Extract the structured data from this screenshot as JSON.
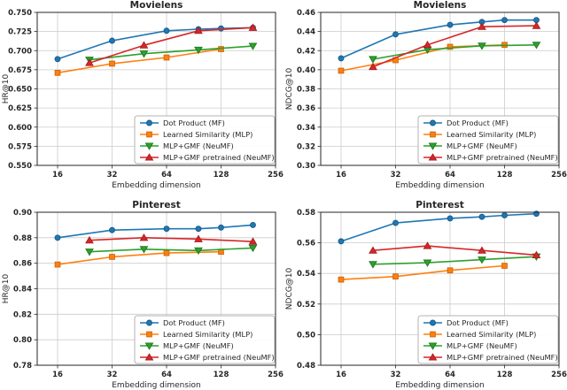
{
  "figure": {
    "background": "#ffffff",
    "grid_color": "#cccccc",
    "spine_color": "#262626",
    "legend_border_color": "#b3b3b3",
    "legend_position": "lower right"
  },
  "chart_data": [
    {
      "type": "line",
      "title": "Movielens",
      "xlabel": "Embedding dimension",
      "ylabel": "HR@10",
      "xscale": "log2",
      "xticks": [
        16,
        32,
        64,
        128,
        256
      ],
      "xtick_labels": [
        "16",
        "32",
        "64",
        "128",
        "256"
      ],
      "ylim": [
        0.55,
        0.75
      ],
      "yticks": [
        0.55,
        0.575,
        0.6,
        0.625,
        0.65,
        0.675,
        0.7,
        0.725,
        0.75
      ],
      "ytick_labels": [
        "0.550",
        "0.575",
        "0.600",
        "0.625",
        "0.650",
        "0.675",
        "0.700",
        "0.725",
        "0.750"
      ],
      "grid": true,
      "legend_position": "lower right",
      "series": [
        {
          "name": "Dot Product (MF)",
          "color": "#1f77b4",
          "edge": "#175a88",
          "marker": "circle",
          "x": [
            16,
            32,
            64,
            96,
            128,
            192
          ],
          "y": [
            0.689,
            0.713,
            0.726,
            0.728,
            0.729,
            0.73
          ]
        },
        {
          "name": "Learned Similarity (MLP)",
          "color": "#ff7f0e",
          "edge": "#cc660b",
          "marker": "square",
          "x": [
            16,
            32,
            64,
            128
          ],
          "y": [
            0.671,
            0.683,
            0.691,
            0.702
          ]
        },
        {
          "name": "MLP+GMF (NeuMF)",
          "color": "#2ca02c",
          "edge": "#1f7a1f",
          "marker": "triangle-down",
          "x": [
            24,
            48,
            96,
            192
          ],
          "y": [
            0.688,
            0.696,
            0.701,
            0.706
          ]
        },
        {
          "name": "MLP+GMF pretrained (NeuMF)",
          "color": "#d62728",
          "edge": "#a51d1e",
          "marker": "triangle-up",
          "x": [
            24,
            48,
            96,
            192
          ],
          "y": [
            0.684,
            0.707,
            0.726,
            0.73
          ]
        }
      ]
    },
    {
      "type": "line",
      "title": "Movielens",
      "xlabel": "Embedding dimension",
      "ylabel": "NDCG@10",
      "xscale": "log2",
      "xticks": [
        16,
        32,
        64,
        128,
        256
      ],
      "xtick_labels": [
        "16",
        "32",
        "64",
        "128",
        "256"
      ],
      "ylim": [
        0.3,
        0.46
      ],
      "yticks": [
        0.3,
        0.32,
        0.34,
        0.36,
        0.38,
        0.4,
        0.42,
        0.44,
        0.46
      ],
      "ytick_labels": [
        "0.30",
        "0.32",
        "0.34",
        "0.36",
        "0.38",
        "0.40",
        "0.42",
        "0.44",
        "0.46"
      ],
      "grid": true,
      "legend_position": "lower right",
      "series": [
        {
          "name": "Dot Product (MF)",
          "color": "#1f77b4",
          "edge": "#175a88",
          "marker": "circle",
          "x": [
            16,
            32,
            64,
            96,
            128,
            192
          ],
          "y": [
            0.412,
            0.437,
            0.447,
            0.45,
            0.452,
            0.452
          ]
        },
        {
          "name": "Learned Similarity (MLP)",
          "color": "#ff7f0e",
          "edge": "#cc660b",
          "marker": "square",
          "x": [
            16,
            32,
            64,
            128
          ],
          "y": [
            0.399,
            0.41,
            0.424,
            0.426
          ]
        },
        {
          "name": "MLP+GMF (NeuMF)",
          "color": "#2ca02c",
          "edge": "#1f7a1f",
          "marker": "triangle-down",
          "x": [
            24,
            48,
            96,
            192
          ],
          "y": [
            0.411,
            0.421,
            0.425,
            0.426
          ]
        },
        {
          "name": "MLP+GMF pretrained (NeuMF)",
          "color": "#d62728",
          "edge": "#a51d1e",
          "marker": "triangle-up",
          "x": [
            24,
            48,
            96,
            192
          ],
          "y": [
            0.403,
            0.426,
            0.445,
            0.446
          ]
        }
      ]
    },
    {
      "type": "line",
      "title": "Pinterest",
      "xlabel": "Embedding dimension",
      "ylabel": "HR@10",
      "xscale": "log2",
      "xticks": [
        16,
        32,
        64,
        128,
        256
      ],
      "xtick_labels": [
        "16",
        "32",
        "64",
        "128",
        "256"
      ],
      "ylim": [
        0.78,
        0.9
      ],
      "yticks": [
        0.78,
        0.8,
        0.82,
        0.84,
        0.86,
        0.88,
        0.9
      ],
      "ytick_labels": [
        "0.78",
        "0.80",
        "0.82",
        "0.84",
        "0.86",
        "0.88",
        "0.90"
      ],
      "grid": true,
      "legend_position": "lower right",
      "series": [
        {
          "name": "Dot Product (MF)",
          "color": "#1f77b4",
          "edge": "#175a88",
          "marker": "circle",
          "x": [
            16,
            32,
            64,
            96,
            128,
            192
          ],
          "y": [
            0.88,
            0.886,
            0.887,
            0.887,
            0.888,
            0.89
          ]
        },
        {
          "name": "Learned Similarity (MLP)",
          "color": "#ff7f0e",
          "edge": "#cc660b",
          "marker": "square",
          "x": [
            16,
            32,
            64,
            128
          ],
          "y": [
            0.859,
            0.865,
            0.868,
            0.869
          ]
        },
        {
          "name": "MLP+GMF (NeuMF)",
          "color": "#2ca02c",
          "edge": "#1f7a1f",
          "marker": "triangle-down",
          "x": [
            24,
            48,
            96,
            192
          ],
          "y": [
            0.869,
            0.871,
            0.87,
            0.872
          ]
        },
        {
          "name": "MLP+GMF pretrained (NeuMF)",
          "color": "#d62728",
          "edge": "#a51d1e",
          "marker": "triangle-up",
          "x": [
            24,
            48,
            96,
            192
          ],
          "y": [
            0.878,
            0.88,
            0.879,
            0.877
          ]
        }
      ]
    },
    {
      "type": "line",
      "title": "Pinterest",
      "xlabel": "Embedding dimension",
      "ylabel": "NDCG@10",
      "xscale": "log2",
      "xticks": [
        16,
        32,
        64,
        128,
        256
      ],
      "xtick_labels": [
        "16",
        "32",
        "64",
        "128",
        "256"
      ],
      "ylim": [
        0.48,
        0.58
      ],
      "yticks": [
        0.48,
        0.5,
        0.52,
        0.54,
        0.56,
        0.58
      ],
      "ytick_labels": [
        "0.48",
        "0.50",
        "0.52",
        "0.54",
        "0.56",
        "0.58"
      ],
      "grid": true,
      "legend_position": "lower right",
      "series": [
        {
          "name": "Dot Product (MF)",
          "color": "#1f77b4",
          "edge": "#175a88",
          "marker": "circle",
          "x": [
            16,
            32,
            64,
            96,
            128,
            192
          ],
          "y": [
            0.561,
            0.573,
            0.576,
            0.577,
            0.578,
            0.579
          ]
        },
        {
          "name": "Learned Similarity (MLP)",
          "color": "#ff7f0e",
          "edge": "#cc660b",
          "marker": "square",
          "x": [
            16,
            32,
            64,
            128
          ],
          "y": [
            0.536,
            0.538,
            0.542,
            0.545
          ]
        },
        {
          "name": "MLP+GMF (NeuMF)",
          "color": "#2ca02c",
          "edge": "#1f7a1f",
          "marker": "triangle-down",
          "x": [
            24,
            48,
            96,
            192
          ],
          "y": [
            0.546,
            0.547,
            0.549,
            0.551
          ]
        },
        {
          "name": "MLP+GMF pretrained (NeuMF)",
          "color": "#d62728",
          "edge": "#a51d1e",
          "marker": "triangle-up",
          "x": [
            24,
            48,
            96,
            192
          ],
          "y": [
            0.555,
            0.558,
            0.555,
            0.552
          ]
        }
      ]
    }
  ]
}
